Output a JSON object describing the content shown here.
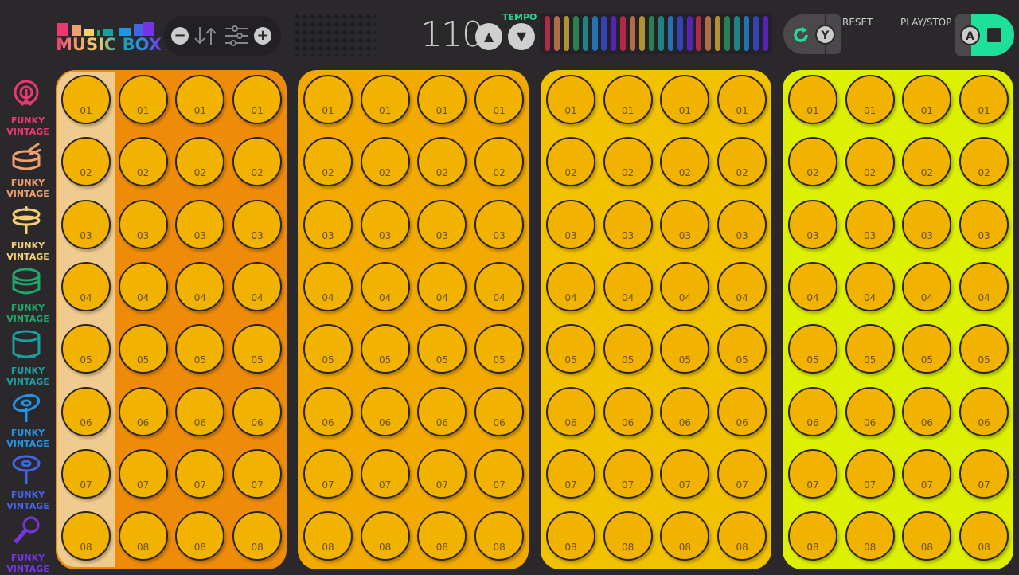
{
  "logo": {
    "text": "MUSIC BOX"
  },
  "toolbar": {
    "minus": "−",
    "plus": "+",
    "sort_icon": "sort-arrows-icon",
    "mixer_icon": "sliders-icon"
  },
  "tempo": {
    "value": "110",
    "label": "TEMPO",
    "up": "▲",
    "down": "▼",
    "bar_colors": [
      "#b02a48",
      "#b06c46",
      "#b09234",
      "#2a8050",
      "#1f8383",
      "#2272b4",
      "#3444b4",
      "#5424b4"
    ],
    "bar_count": 24
  },
  "reset": {
    "label": "RESET",
    "key": "Y"
  },
  "play": {
    "label": "PLAY/STOP",
    "key": "A",
    "accent": "#1fe09a"
  },
  "instruments": [
    {
      "label": "FUNKY VINTAGE",
      "icon": "bass-drum-icon",
      "color": "#e83a70"
    },
    {
      "label": "FUNKY VINTAGE",
      "icon": "snare-drum-icon",
      "color": "#f0a070"
    },
    {
      "label": "FUNKY VINTAGE",
      "icon": "hihat-cymbal-icon",
      "color": "#f5d070"
    },
    {
      "label": "FUNKY VINTAGE",
      "icon": "tom-drum-icon",
      "color": "#1fa86a"
    },
    {
      "label": "FUNKY VINTAGE",
      "icon": "floor-tom-icon",
      "color": "#1aa0a0"
    },
    {
      "label": "FUNKY VINTAGE",
      "icon": "crash-cymbal-icon",
      "color": "#2494e4"
    },
    {
      "label": "FUNKY VINTAGE",
      "icon": "ride-cymbal-icon",
      "color": "#4464e4"
    },
    {
      "label": "FUNKY VINTAGE",
      "icon": "microphone-icon",
      "color": "#7634e4"
    }
  ],
  "panels": [
    {
      "color": "#ee8c0a"
    },
    {
      "color": "#f2a900"
    },
    {
      "color": "#f2c200"
    },
    {
      "color": "#dcf000"
    }
  ],
  "rows": [
    "01",
    "02",
    "03",
    "04",
    "05",
    "06",
    "07",
    "08"
  ],
  "active_column_color": "#f0cb8f"
}
